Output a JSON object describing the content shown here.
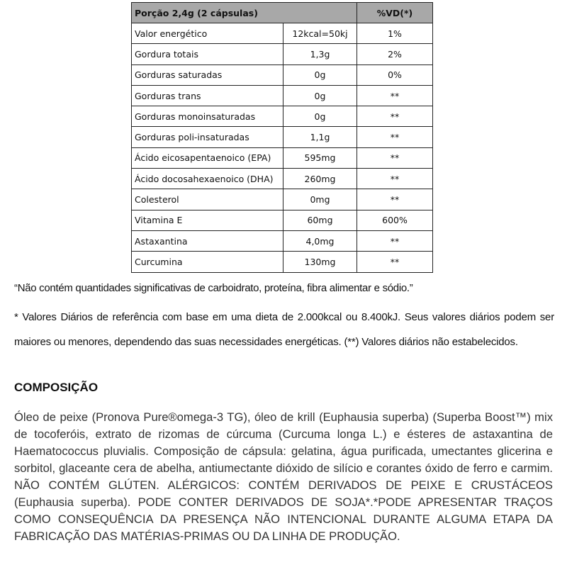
{
  "table": {
    "header": {
      "portion": "Porção 2,4g (2 cápsulas)",
      "vd": "%VD(*)"
    },
    "rows": [
      {
        "name": "Valor energético",
        "amount": "12kcal=50kj",
        "vd": "1%"
      },
      {
        "name": "Gordura totais",
        "amount": "1,3g",
        "vd": "2%"
      },
      {
        "name": "Gorduras saturadas",
        "amount": "0g",
        "vd": "0%"
      },
      {
        "name": "Gorduras trans",
        "amount": "0g",
        "vd": "**"
      },
      {
        "name": "Gorduras monoinsaturadas",
        "amount": "0g",
        "vd": "**"
      },
      {
        "name": "Gorduras poli-insaturadas",
        "amount": "1,1g",
        "vd": "**"
      },
      {
        "name": "Ácido eicosapentaenoico (EPA)",
        "amount": "595mg",
        "vd": "**"
      },
      {
        "name": "Ácido docosahexaenoico (DHA)",
        "amount": "260mg",
        "vd": "**"
      },
      {
        "name": "Colesterol",
        "amount": "0mg",
        "vd": "**"
      },
      {
        "name": "Vitamina E",
        "amount": "60mg",
        "vd": "600%"
      },
      {
        "name": "Astaxantina",
        "amount": "4,0mg",
        "vd": "**"
      },
      {
        "name": "Curcumina",
        "amount": "130mg",
        "vd": "**"
      }
    ]
  },
  "notes": {
    "not_significant": "“Não contém quantidades significativas de carboidrato, proteína, fibra alimentar e sódio.”",
    "daily_values": "* Valores Diários de referência com base em uma dieta de 2.000kcal ou 8.400kJ. Seus valores diários podem ser maiores ou menores, dependendo das suas necessidades energéticas. (**) Valores diários não estabelecidos."
  },
  "composition": {
    "title": "COMPOSIÇÃO",
    "text": "Óleo de peixe (Pronova Pure®omega-3 TG), óleo de krill (Euphausia superba) (Superba Boost™) mix de tocoferóis, extrato de rizomas de cúrcuma (Curcuma longa L.) e ésteres de astaxantina de Haematococcus pluvialis. Composição de cápsula: gelatina, água purificada, umectantes glicerina e sorbitol, glaceante cera de abelha, antiumectante dióxido de silício e corantes óxido de ferro e carmim. NÃO CONTÉM GLÚTEN. ALÉRGICOS: CONTÉM DERIVADOS DE PEIXE E CRUSTÁCEOS (Euphausia superba). PODE CONTER DERIVADOS DE SOJA*.*PODE APRESENTAR TRAÇOS COMO CONSEQUÊNCIA DA PRESENÇA NÃO INTENCIONAL DURANTE ALGUMA ETAPA DA FABRICAÇÃO DAS MATÉRIAS-PRIMAS OU DA LINHA DE PRODUÇÃO."
  }
}
